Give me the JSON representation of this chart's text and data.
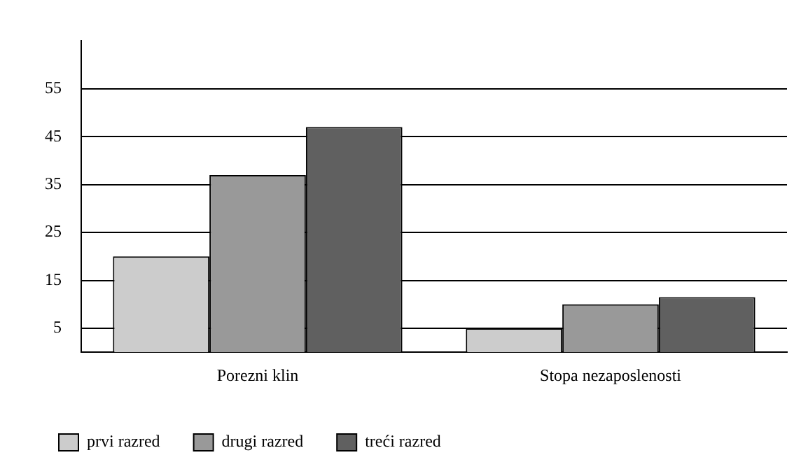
{
  "chart_data": {
    "type": "bar",
    "categories": [
      "Porezni klin",
      "Stopa nezaposlenosti"
    ],
    "series": [
      {
        "name": "prvi razred",
        "color": "#cccccc",
        "values": [
          20,
          5
        ]
      },
      {
        "name": "drugi razred",
        "color": "#999999",
        "values": [
          37,
          10
        ]
      },
      {
        "name": "treći razred",
        "color": "#606060",
        "values": [
          47,
          11.5
        ]
      }
    ],
    "ylim": [
      0,
      65
    ],
    "yticks": [
      5,
      15,
      25,
      35,
      45,
      55
    ],
    "grid": "y",
    "legend": "bottom left"
  }
}
